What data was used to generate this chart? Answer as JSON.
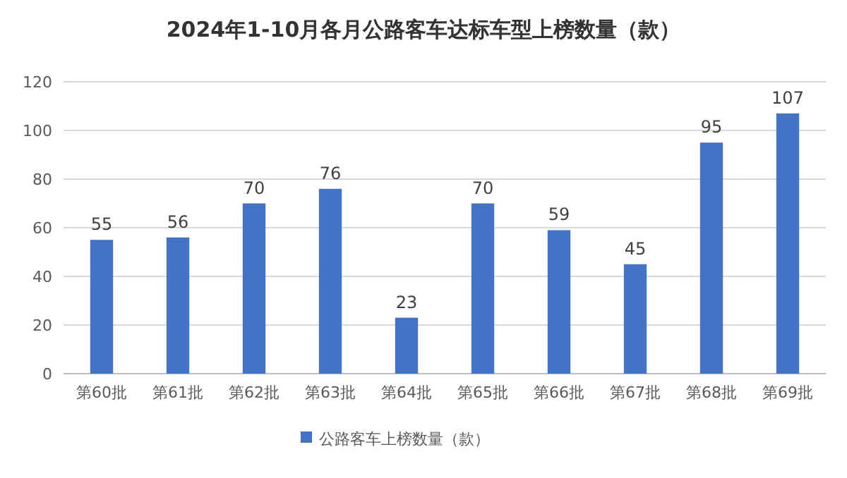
{
  "chart_data": {
    "type": "bar",
    "title": "2024年1-10月各月公路客车达标车型上榜数量（款）",
    "categories": [
      "第60批",
      "第61批",
      "第62批",
      "第63批",
      "第64批",
      "第65批",
      "第66批",
      "第67批",
      "第68批",
      "第69批"
    ],
    "series": [
      {
        "name": "公路客车上榜数量（款）",
        "color": "#4472c4",
        "values": [
          55,
          56,
          70,
          76,
          23,
          70,
          59,
          45,
          95,
          107
        ]
      }
    ],
    "ylim": [
      0,
      120
    ],
    "yticks": [
      0,
      20,
      40,
      60,
      80,
      100,
      120
    ],
    "grid": "y",
    "legend": "bottom",
    "data_labels": true
  }
}
